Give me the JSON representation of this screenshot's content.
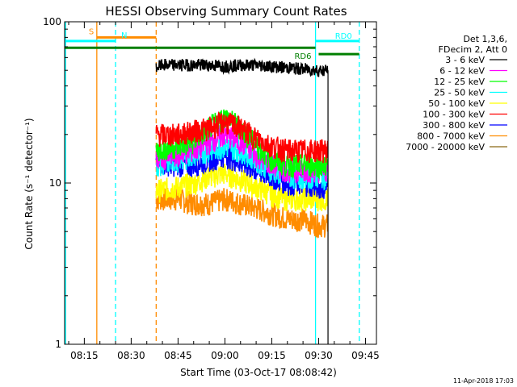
{
  "chart_data": {
    "type": "line",
    "title": "HESSI Observing Summary Count Rates",
    "xlabel": "Start Time (03-Oct-17 08:08:42)",
    "ylabel": "Count Rate (s⁻¹ detector⁻¹)",
    "y_scale": "log",
    "ylim": [
      1,
      100
    ],
    "xlim": [
      "08:08:42",
      "09:48:30"
    ],
    "x_ticks": [
      "08:15",
      "08:30",
      "08:45",
      "09:00",
      "09:15",
      "09:30",
      "09:45"
    ],
    "y_ticks": [
      "1",
      "10",
      "100"
    ],
    "footer": "11-Apr-2018 17:03",
    "legend_header": [
      "Det 1,3,6,",
      "FDecim 2, Att 0"
    ],
    "series": [
      {
        "name": "3 - 6 keV",
        "color": "#000000",
        "x": [
          "08:38",
          "08:40",
          "08:45",
          "08:50",
          "08:55",
          "09:00",
          "09:05",
          "09:10",
          "09:15",
          "09:20",
          "09:25",
          "09:30",
          "09:33"
        ],
        "values": [
          52,
          54,
          54,
          54,
          54,
          53,
          54,
          54,
          53,
          52,
          51,
          50,
          50
        ]
      },
      {
        "name": "6 - 12 keV",
        "color": "#ff00ff",
        "x": [
          "08:38",
          "08:45",
          "08:50",
          "08:55",
          "09:00",
          "09:05",
          "09:10",
          "09:15",
          "09:20",
          "09:25",
          "09:30",
          "09:33"
        ],
        "values": [
          14,
          15,
          16,
          18,
          20,
          18,
          15,
          13,
          12,
          12,
          12,
          12
        ]
      },
      {
        "name": "12 - 25 keV",
        "color": "#00ff00",
        "x": [
          "08:38",
          "08:45",
          "08:50",
          "08:55",
          "09:00",
          "09:05",
          "09:10",
          "09:15",
          "09:20",
          "09:25",
          "09:30",
          "09:33"
        ],
        "values": [
          16,
          17,
          18,
          22,
          26,
          22,
          17,
          14,
          13,
          13,
          13,
          13
        ]
      },
      {
        "name": "25 - 50 keV",
        "color": "#00ffff",
        "x": [
          "08:38",
          "08:45",
          "08:50",
          "08:55",
          "09:00",
          "09:05",
          "09:10",
          "09:15",
          "09:20",
          "09:25",
          "09:30",
          "09:33"
        ],
        "values": [
          13,
          14,
          15,
          16,
          17,
          16,
          14,
          12,
          11,
          11,
          11,
          11
        ]
      },
      {
        "name": "50 - 100 keV",
        "color": "#ffff00",
        "x": [
          "08:38",
          "08:45",
          "08:50",
          "08:55",
          "09:00",
          "09:05",
          "09:10",
          "09:15",
          "09:20",
          "09:25",
          "09:30",
          "09:33"
        ],
        "values": [
          9,
          9.5,
          10,
          11,
          11.5,
          10.5,
          9.5,
          8.5,
          8,
          8,
          8,
          8
        ]
      },
      {
        "name": "100 - 300 keV",
        "color": "#ff0000",
        "x": [
          "08:38",
          "08:45",
          "08:50",
          "08:55",
          "09:00",
          "09:05",
          "09:10",
          "09:15",
          "09:20",
          "09:25",
          "09:30",
          "09:33"
        ],
        "values": [
          20,
          20,
          21,
          22,
          24,
          22,
          19,
          17,
          16,
          16,
          16,
          16
        ]
      },
      {
        "name": "300 - 800 keV",
        "color": "#0000ff",
        "x": [
          "08:38",
          "08:45",
          "08:50",
          "08:55",
          "09:00",
          "09:05",
          "09:10",
          "09:15",
          "09:20",
          "09:25",
          "09:30",
          "09:33"
        ],
        "values": [
          13.5,
          13,
          13,
          14,
          15,
          13.5,
          12,
          11,
          10,
          10,
          9.5,
          9.5
        ]
      },
      {
        "name": "800 - 7000 keV",
        "color": "#ff8c00",
        "x": [
          "08:38",
          "08:45",
          "08:50",
          "08:55",
          "09:00",
          "09:05",
          "09:10",
          "09:15",
          "09:20",
          "09:25",
          "09:30",
          "09:33"
        ],
        "values": [
          8,
          8,
          7.5,
          7.5,
          8,
          7.5,
          7,
          6.5,
          6,
          6,
          5.5,
          5.5
        ]
      },
      {
        "name": "7000 - 20000 keV",
        "color": "#8b6914",
        "x": [],
        "values": []
      }
    ],
    "flags": [
      {
        "label": "S",
        "color": "#ff8c00",
        "level": 80,
        "x_start": "08:19",
        "x_end": "08:38"
      },
      {
        "label": "N",
        "color": "#00ffff",
        "level": 76,
        "x_start": "08:08:42",
        "x_end": "08:25"
      },
      {
        "label": "RD0",
        "color": "#00ffff",
        "level": 76,
        "x_start": "09:29",
        "x_end": "09:43"
      },
      {
        "label": "",
        "color": "#007f00",
        "level": 69,
        "x_start": "08:08:42",
        "x_end": "09:29"
      },
      {
        "label": "RD6",
        "color": "#007f00",
        "level": 63,
        "x_start": "09:30",
        "x_end": "09:43"
      }
    ],
    "vlines": [
      {
        "color": "#00ffff",
        "style": "solid",
        "x": "08:09"
      },
      {
        "color": "#ff8c00",
        "style": "solid",
        "x": "08:19"
      },
      {
        "color": "#00ffff",
        "style": "dashed",
        "x": "08:25"
      },
      {
        "color": "#ff8c00",
        "style": "dashed",
        "x": "08:38"
      },
      {
        "color": "#00ffff",
        "style": "solid",
        "x": "09:29"
      },
      {
        "color": "#00ffff",
        "style": "dashed",
        "x": "09:43"
      }
    ]
  }
}
